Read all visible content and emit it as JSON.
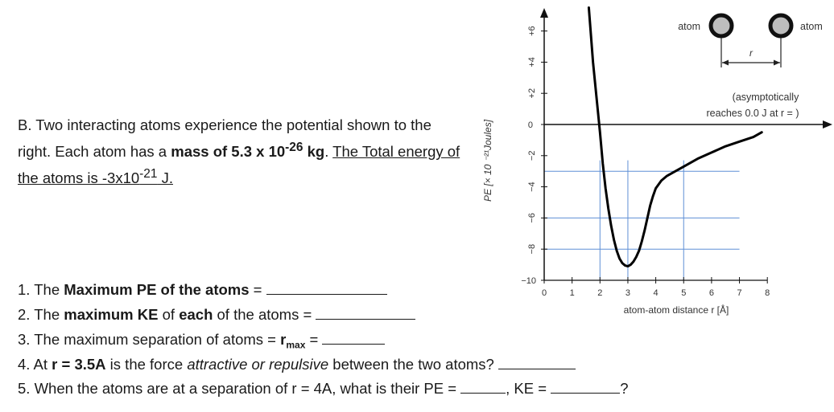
{
  "problem": {
    "prefix": "B. Two interacting atoms experience the potential shown to the right.  Each atom has a ",
    "mass_label": "mass of 5.3 x 10",
    "mass_exp": "-26",
    "mass_unit": " kg",
    "period": ".  ",
    "energy_label": "The Total energy of the atoms is -3x10",
    "energy_exp": "-21",
    "energy_unit": " J."
  },
  "questions": {
    "q1_pre": "1. The ",
    "q1_bold": "Maximum PE of the atoms",
    "q1_post": " =",
    "q2_pre": "2. The ",
    "q2_bold": "maximum KE",
    "q2_mid": " of ",
    "q2_bold2": "each",
    "q2_post": " of the atoms =",
    "q3_pre": "3. The maximum separation of atoms = ",
    "q3_bold": "r",
    "q3_sub": "max",
    "q3_post": " =",
    "q4_pre": "4. At ",
    "q4_bold": "r = 3.5A",
    "q4_mid": " is the force ",
    "q4_italic": "attractive or repulsive",
    "q4_post": " between the two atoms?",
    "q5_pre": "5. When the atoms are at a separation of r = 4A, what is their PE =",
    "q5_mid": ", KE =",
    "q5_post": "?"
  },
  "diagram": {
    "atom_left": "atom",
    "atom_right": "atom",
    "r_label": "r",
    "note_line1": "(asymptotically",
    "note_line2": "reaches 0.0 J at  r = )"
  },
  "chart_data": {
    "type": "line",
    "xlabel": "atom-atom distance  r [Å]",
    "ylabel": "PE [× 10 ⁻²¹Joules]",
    "xlim": [
      0,
      8
    ],
    "ylim": [
      -10,
      6
    ],
    "x_ticks": [
      0,
      1,
      2,
      3,
      4,
      5,
      6,
      7,
      8
    ],
    "y_ticks": [
      "+6",
      "+4",
      "+2",
      "0",
      "−2",
      "−4",
      "−6",
      "−8",
      "−10"
    ],
    "grid_x": [
      2,
      3,
      5
    ],
    "grid_y": [
      -3,
      -6,
      -8
    ],
    "series": [
      {
        "x": [
          1.6,
          1.75,
          1.9,
          2.0,
          2.1,
          2.2,
          2.3,
          2.4,
          2.5,
          2.6,
          2.7,
          2.8,
          2.9,
          3.0,
          3.1,
          3.2,
          3.3,
          3.4,
          3.5,
          3.6,
          3.7,
          3.8,
          3.9,
          4.0,
          4.2,
          4.4,
          4.6,
          4.8,
          5.0,
          5.5,
          6.0,
          6.5,
          7.0,
          7.5,
          7.8
        ],
        "y": [
          7.5,
          4.0,
          1.3,
          -0.5,
          -2.5,
          -4.1,
          -5.4,
          -6.5,
          -7.4,
          -8.1,
          -8.6,
          -8.9,
          -9.05,
          -9.1,
          -9.0,
          -8.8,
          -8.5,
          -8.1,
          -7.5,
          -6.8,
          -6.0,
          -5.2,
          -4.6,
          -4.1,
          -3.6,
          -3.3,
          -3.1,
          -2.9,
          -2.7,
          -2.2,
          -1.8,
          -1.4,
          -1.1,
          -0.8,
          -0.5
        ]
      }
    ]
  }
}
